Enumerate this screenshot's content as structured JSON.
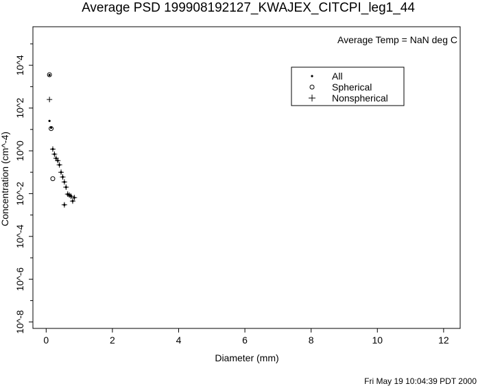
{
  "chart_data": {
    "type": "scatter",
    "title": "Average PSD 199908192127_KWAJEX_CITCPI_leg1_44",
    "annotation": "Average Temp = NaN deg C",
    "xlabel": "Diameter (mm)",
    "ylabel": "Concentration (cm^-4)",
    "x_scale": "linear",
    "y_scale": "log",
    "xlim": [
      -0.4,
      12.5
    ],
    "ylim_log10": [
      -8.3,
      5.8
    ],
    "x_ticks": [
      0,
      2,
      4,
      6,
      8,
      10,
      12
    ],
    "y_tick_labels": [
      "10^-8",
      "10^-6",
      "10^-4",
      "10^-2",
      "10^0",
      "10^2",
      "10^4"
    ],
    "y_tick_values_log10": [
      -8,
      -6,
      -4,
      -2,
      0,
      2,
      4
    ],
    "grid": false,
    "legend_position": "top-right",
    "series": [
      {
        "name": "All",
        "marker": "dot",
        "points": [
          {
            "x": 0.1,
            "y": 3500.0
          },
          {
            "x": 0.1,
            "y": 25
          },
          {
            "x": 0.15,
            "y": 12
          },
          {
            "x": 0.2,
            "y": 1.2
          },
          {
            "x": 0.25,
            "y": 0.7
          },
          {
            "x": 0.3,
            "y": 0.45
          },
          {
            "x": 0.35,
            "y": 0.35
          },
          {
            "x": 0.4,
            "y": 0.22
          },
          {
            "x": 0.45,
            "y": 0.1
          },
          {
            "x": 0.5,
            "y": 0.06
          },
          {
            "x": 0.55,
            "y": 0.035
          },
          {
            "x": 0.6,
            "y": 0.02
          },
          {
            "x": 0.65,
            "y": 0.0095
          },
          {
            "x": 0.7,
            "y": 0.0085
          },
          {
            "x": 0.75,
            "y": 0.0075
          },
          {
            "x": 0.8,
            "y": 0.0045
          },
          {
            "x": 0.85,
            "y": 0.0065
          },
          {
            "x": 0.55,
            "y": 0.003
          }
        ]
      },
      {
        "name": "Spherical",
        "marker": "circle",
        "points": [
          {
            "x": 0.1,
            "y": 3600.0
          },
          {
            "x": 0.15,
            "y": 11
          },
          {
            "x": 0.2,
            "y": 0.05
          }
        ]
      },
      {
        "name": "Nonspherical",
        "marker": "plus",
        "points": [
          {
            "x": 0.1,
            "y": 250
          },
          {
            "x": 0.2,
            "y": 1.2
          },
          {
            "x": 0.25,
            "y": 0.7
          },
          {
            "x": 0.3,
            "y": 0.45
          },
          {
            "x": 0.35,
            "y": 0.35
          },
          {
            "x": 0.4,
            "y": 0.22
          },
          {
            "x": 0.45,
            "y": 0.1
          },
          {
            "x": 0.5,
            "y": 0.06
          },
          {
            "x": 0.55,
            "y": 0.035
          },
          {
            "x": 0.6,
            "y": 0.02
          },
          {
            "x": 0.65,
            "y": 0.0095
          },
          {
            "x": 0.7,
            "y": 0.0085
          },
          {
            "x": 0.75,
            "y": 0.0075
          },
          {
            "x": 0.8,
            "y": 0.0045
          },
          {
            "x": 0.85,
            "y": 0.0065
          },
          {
            "x": 0.55,
            "y": 0.003
          }
        ]
      }
    ]
  },
  "footer": {
    "timestamp": "Fri May 19 10:04:39 PDT 2000"
  }
}
